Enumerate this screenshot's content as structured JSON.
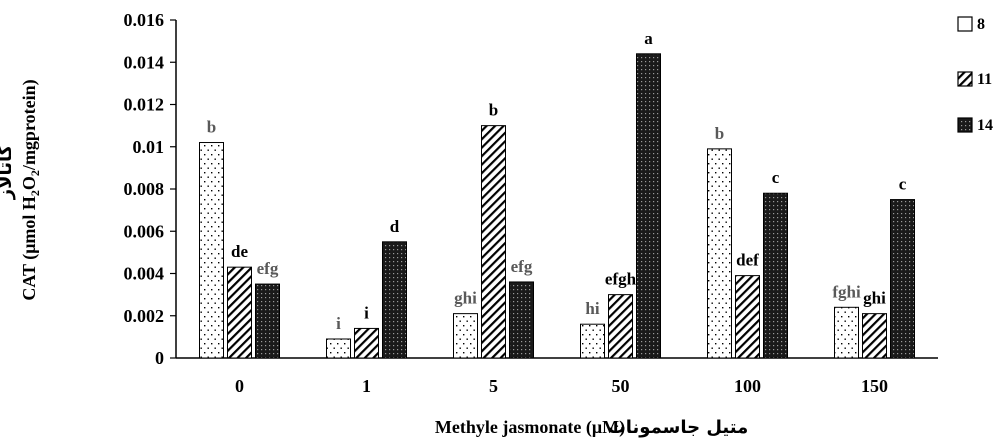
{
  "chart_data": {
    "type": "bar",
    "categories": [
      "0",
      "1",
      "5",
      "50",
      "100",
      "150"
    ],
    "series": [
      {
        "name": "8",
        "values": [
          0.0102,
          0.0009,
          0.0021,
          0.0016,
          0.0099,
          0.0024
        ],
        "letters": [
          "b",
          "i",
          "ghi",
          "hi",
          "b",
          "fghi"
        ]
      },
      {
        "name": "11",
        "values": [
          0.0043,
          0.0014,
          0.011,
          0.003,
          0.0039,
          0.0021
        ],
        "letters": [
          "de",
          "i",
          "b",
          "efgh",
          "def",
          "ghi"
        ]
      },
      {
        "name": "14",
        "values": [
          0.0035,
          0.0055,
          0.0036,
          0.0144,
          0.0078,
          0.0075
        ],
        "letters": [
          "efg",
          "d",
          "efg",
          "a",
          "c",
          "c"
        ]
      }
    ],
    "y_ticks": [
      "0",
      "0.002",
      "0.004",
      "0.006",
      "0.008",
      "0.01",
      "0.012",
      "0.014",
      "0.016"
    ],
    "ylim": [
      0,
      0.016
    ],
    "xlabel": "Methyle jasmonate (μM)",
    "xlabel_fa": "متیل جاسمونات",
    "ylabel": "CAT (μmol H2O2/mgprotein)",
    "ylabel_fa": "کاتالاز",
    "legend_position": "right",
    "grid": false,
    "colors": {
      "letter_gray": "#595959",
      "letter_black": "#000000",
      "dark_bar": "#1a1a1a"
    },
    "letter_gray_flags": [
      [
        true,
        true,
        true,
        true,
        true,
        true
      ],
      [
        false,
        false,
        false,
        false,
        false,
        false
      ],
      [
        true,
        false,
        true,
        false,
        false,
        false
      ]
    ]
  }
}
